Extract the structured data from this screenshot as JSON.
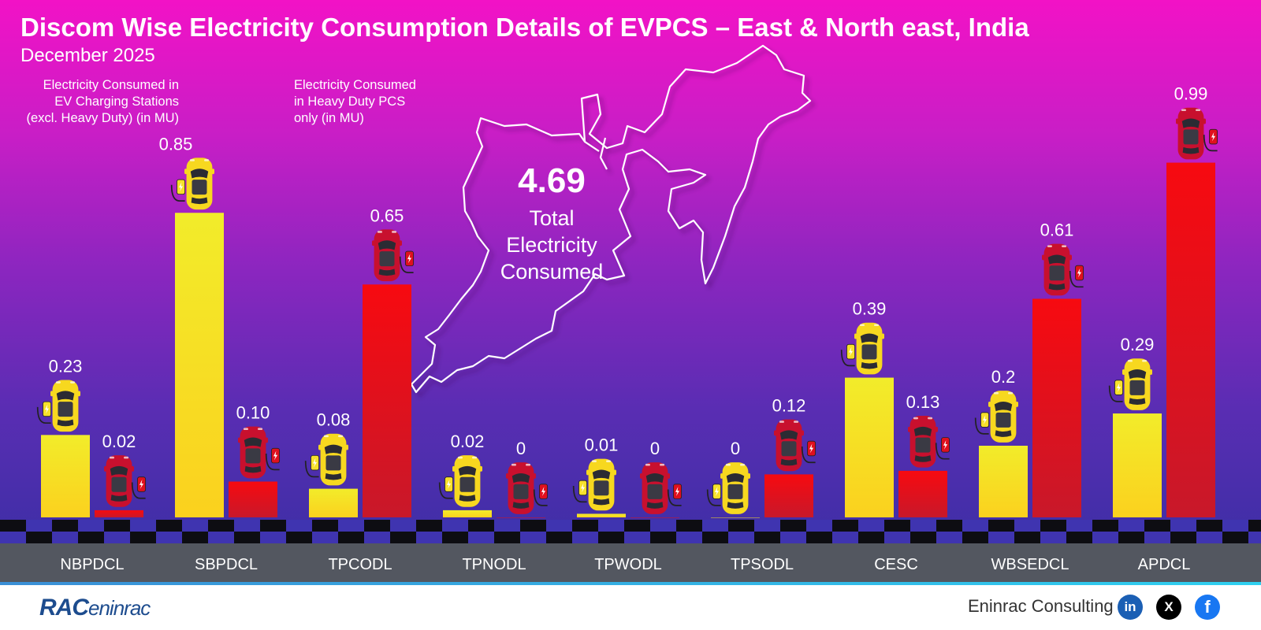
{
  "header": {
    "title": "Discom Wise Electricity Consumption Details of EVPCS – East & North east, India",
    "subtitle": "December 2025"
  },
  "legend": {
    "left_lines": [
      "Electricity Consumed in",
      "EV Charging Stations",
      "(excl. Heavy Duty) (in MU)"
    ],
    "right_lines": [
      "Electricity Consumed",
      "in Heavy Duty PCS",
      "only (in MU)"
    ]
  },
  "total": {
    "value": "4.69",
    "label_lines": [
      "Total",
      "Electricity",
      "Consumed"
    ]
  },
  "chart_data": {
    "type": "bar",
    "title": "Discom Wise Electricity Consumption Details of EVPCS – East & North east, India",
    "subtitle": "December 2025",
    "categories": [
      "NBPDCL",
      "SBPDCL",
      "TPCODL",
      "TPNODL",
      "TPWODL",
      "TPSODL",
      "CESC",
      "WBSEDCL",
      "APDCL"
    ],
    "series": [
      {
        "name": "Electricity Consumed in EV Charging Stations (excl. Heavy Duty) (in MU)",
        "color": "#f2ec2a",
        "values": [
          0.23,
          0.85,
          0.08,
          0.02,
          0.01,
          0,
          0.39,
          0.2,
          0.29
        ],
        "labels": [
          "0.23",
          "0.85",
          "0.08",
          "0.02",
          "0.01",
          "0",
          "0.39",
          "0.2",
          "0.29"
        ]
      },
      {
        "name": "Electricity Consumed in Heavy Duty PCS only (in MU)",
        "color": "#f00a10",
        "values": [
          0.02,
          0.1,
          0.65,
          0,
          0,
          0.12,
          0.13,
          0.61,
          0.99
        ],
        "labels": [
          "0.02",
          "0.10",
          "0.65",
          "0",
          "0",
          "0.12",
          "0.13",
          "0.61",
          "0.99"
        ]
      }
    ],
    "ylim": [
      0,
      1
    ],
    "grid": false,
    "legend_position": "top-left"
  },
  "footer": {
    "brand": "RAC",
    "brand_suffix": "eninrac",
    "company": "Eninrac Consulting",
    "social": [
      {
        "name": "linkedin-icon",
        "glyph": "in"
      },
      {
        "name": "x-icon",
        "glyph": "X"
      },
      {
        "name": "facebook-icon",
        "glyph": "f"
      }
    ]
  }
}
